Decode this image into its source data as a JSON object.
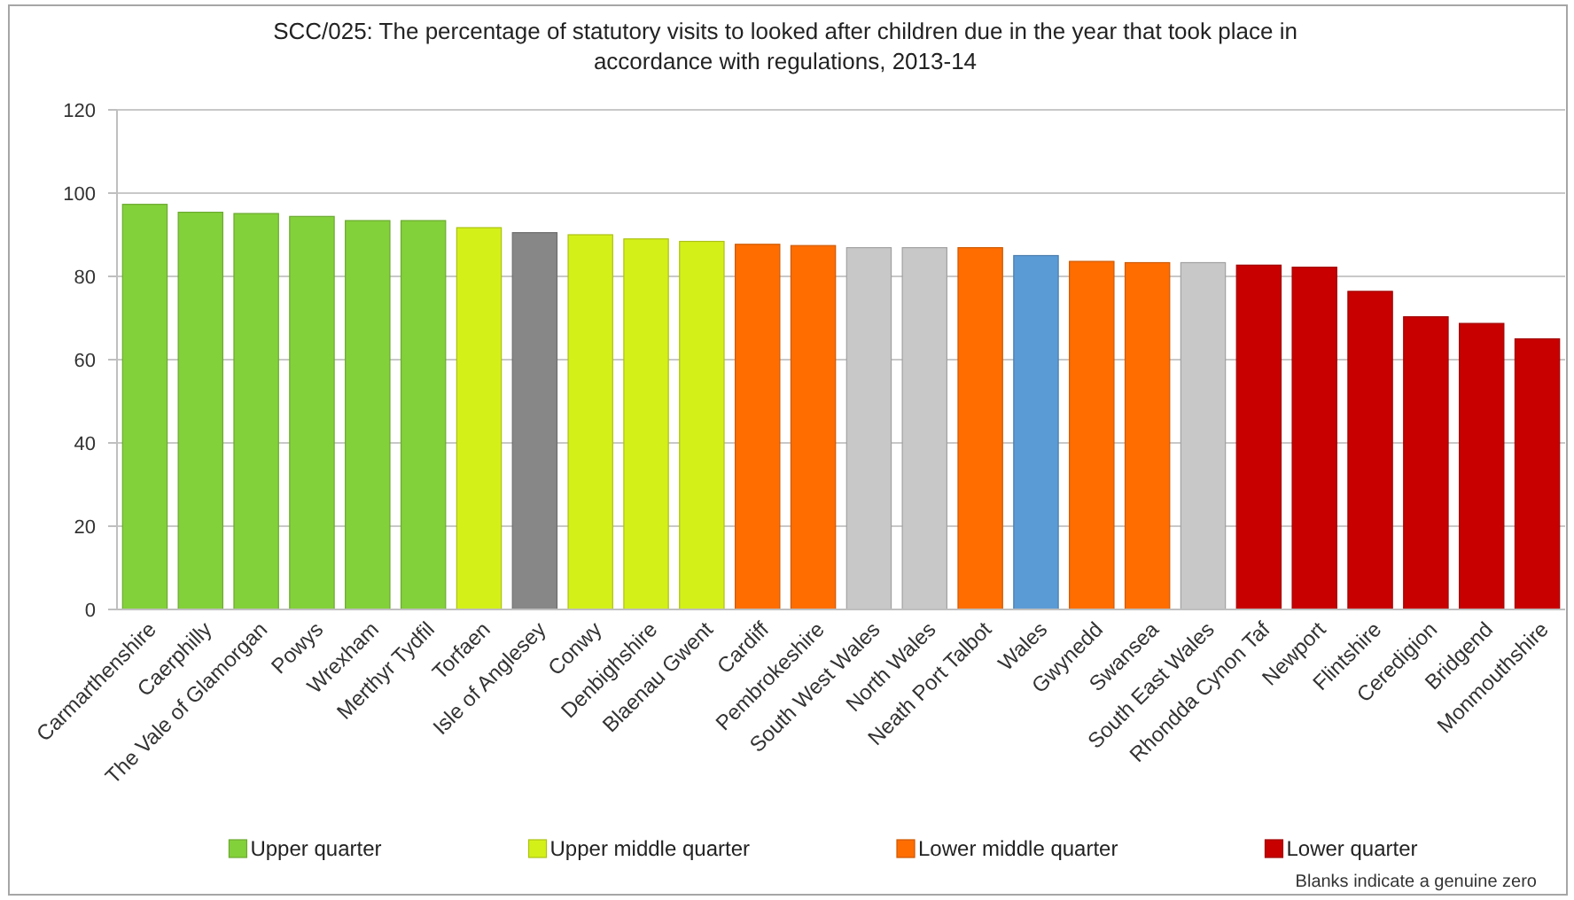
{
  "chart_data": {
    "type": "bar",
    "title": "SCC/025: The percentage of statutory visits to looked after children due in the year that took place in accordance with regulations, 2013-14",
    "categories": [
      "Carmarthenshire",
      "Caerphilly",
      "The Vale of Glamorgan",
      "Powys",
      "Wrexham",
      "Merthyr Tydfil",
      "Torfaen",
      "Isle of Anglesey",
      "Conwy",
      "Denbighshire",
      "Blaenau Gwent",
      "Cardiff",
      "Pembrokeshire",
      "South West Wales",
      "North Wales",
      "Neath Port Talbot",
      "Wales",
      "Gwynedd",
      "Swansea",
      "South East Wales",
      "Rhondda Cynon Taf",
      "Newport",
      "Flintshire",
      "Ceredigion",
      "Bridgend",
      "Monmouthshire"
    ],
    "stacked": true,
    "series": [
      {
        "name": "Upper quarter",
        "color": "#83d13a",
        "values": [
          97.3,
          95.4,
          95.1,
          94.4,
          93.4,
          93.4,
          null,
          null,
          null,
          null,
          null,
          null,
          null,
          null,
          null,
          null,
          null,
          null,
          null,
          null,
          null,
          null,
          null,
          null,
          null,
          null
        ]
      },
      {
        "name": "Upper middle quarter",
        "color": "#d4f019",
        "values": [
          null,
          null,
          null,
          null,
          null,
          null,
          91.7,
          null,
          90.0,
          89.0,
          88.4,
          null,
          null,
          null,
          null,
          null,
          null,
          null,
          null,
          null,
          null,
          null,
          null,
          null,
          null,
          null
        ]
      },
      {
        "name": "Lower middle quarter",
        "color": "#ff6d00",
        "values": [
          null,
          null,
          null,
          null,
          null,
          null,
          null,
          null,
          null,
          null,
          null,
          87.7,
          87.4,
          null,
          null,
          86.9,
          null,
          83.6,
          83.3,
          null,
          null,
          null,
          null,
          null,
          null,
          null
        ]
      },
      {
        "name": "Lower quarter",
        "color": "#c80000",
        "values": [
          null,
          null,
          null,
          null,
          null,
          null,
          null,
          null,
          null,
          null,
          null,
          null,
          null,
          null,
          null,
          null,
          null,
          null,
          null,
          null,
          82.7,
          82.2,
          76.4,
          70.3,
          68.7,
          65.0
        ]
      },
      {
        "color": "#878787",
        "values": [
          null,
          null,
          null,
          null,
          null,
          null,
          null,
          90.5,
          null,
          null,
          null,
          null,
          null,
          null,
          null,
          null,
          null,
          null,
          null,
          null,
          null,
          null,
          null,
          null,
          null,
          null
        ]
      },
      {
        "color": "#c8c8c8",
        "values": [
          null,
          null,
          null,
          null,
          null,
          null,
          null,
          null,
          null,
          null,
          null,
          null,
          null,
          86.9,
          86.9,
          null,
          null,
          null,
          null,
          83.3,
          null,
          null,
          null,
          null,
          null,
          null
        ]
      },
      {
        "color": "#5b9bd5",
        "values": [
          null,
          null,
          null,
          null,
          null,
          null,
          null,
          null,
          null,
          null,
          null,
          null,
          null,
          null,
          null,
          null,
          85.0,
          null,
          null,
          null,
          null,
          null,
          null,
          null,
          null,
          null
        ]
      }
    ],
    "ylim": [
      0,
      120
    ],
    "yticks": [
      0,
      20,
      40,
      60,
      80,
      100,
      120
    ],
    "grid": "y",
    "legend": "bottom",
    "annotations": [
      "Blanks indicate a genuine zero"
    ]
  }
}
